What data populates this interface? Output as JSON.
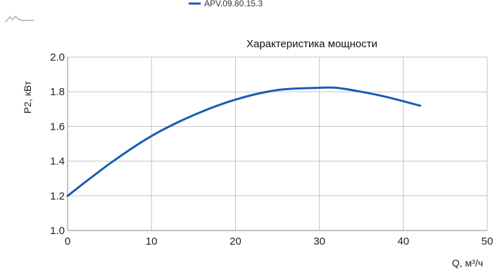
{
  "colors": {
    "series": "#1a5cb5",
    "grid": "#c4c4c4",
    "axis": "#8a8a8a",
    "icon": "#9a9a9a"
  },
  "toolbar": {
    "icon": "line-chart-icon"
  },
  "chart_data": {
    "type": "line",
    "title": "Характеристика мощности",
    "xlabel": "Q, м³/ч",
    "ylabel": "P2, кВт",
    "xlim": [
      0,
      50
    ],
    "ylim": [
      1.0,
      2.0
    ],
    "xticks": [
      0,
      10,
      20,
      30,
      40,
      50
    ],
    "yticks": [
      1.0,
      1.2,
      1.4,
      1.6,
      1.8,
      2.0
    ],
    "xtick_labels": [
      "0",
      "10",
      "20",
      "30",
      "40",
      "50"
    ],
    "ytick_labels": [
      "1.0",
      "1.2",
      "1.4",
      "1.6",
      "1.8",
      "2.0"
    ],
    "grid": true,
    "legend_position": "top",
    "series": [
      {
        "name": "APV.09.80.15.3",
        "x": [
          0,
          5,
          10,
          15,
          20,
          25,
          30,
          32,
          35,
          38,
          42
        ],
        "y": [
          1.2,
          1.385,
          1.545,
          1.665,
          1.755,
          1.81,
          1.823,
          1.823,
          1.8,
          1.77,
          1.72
        ]
      }
    ]
  }
}
